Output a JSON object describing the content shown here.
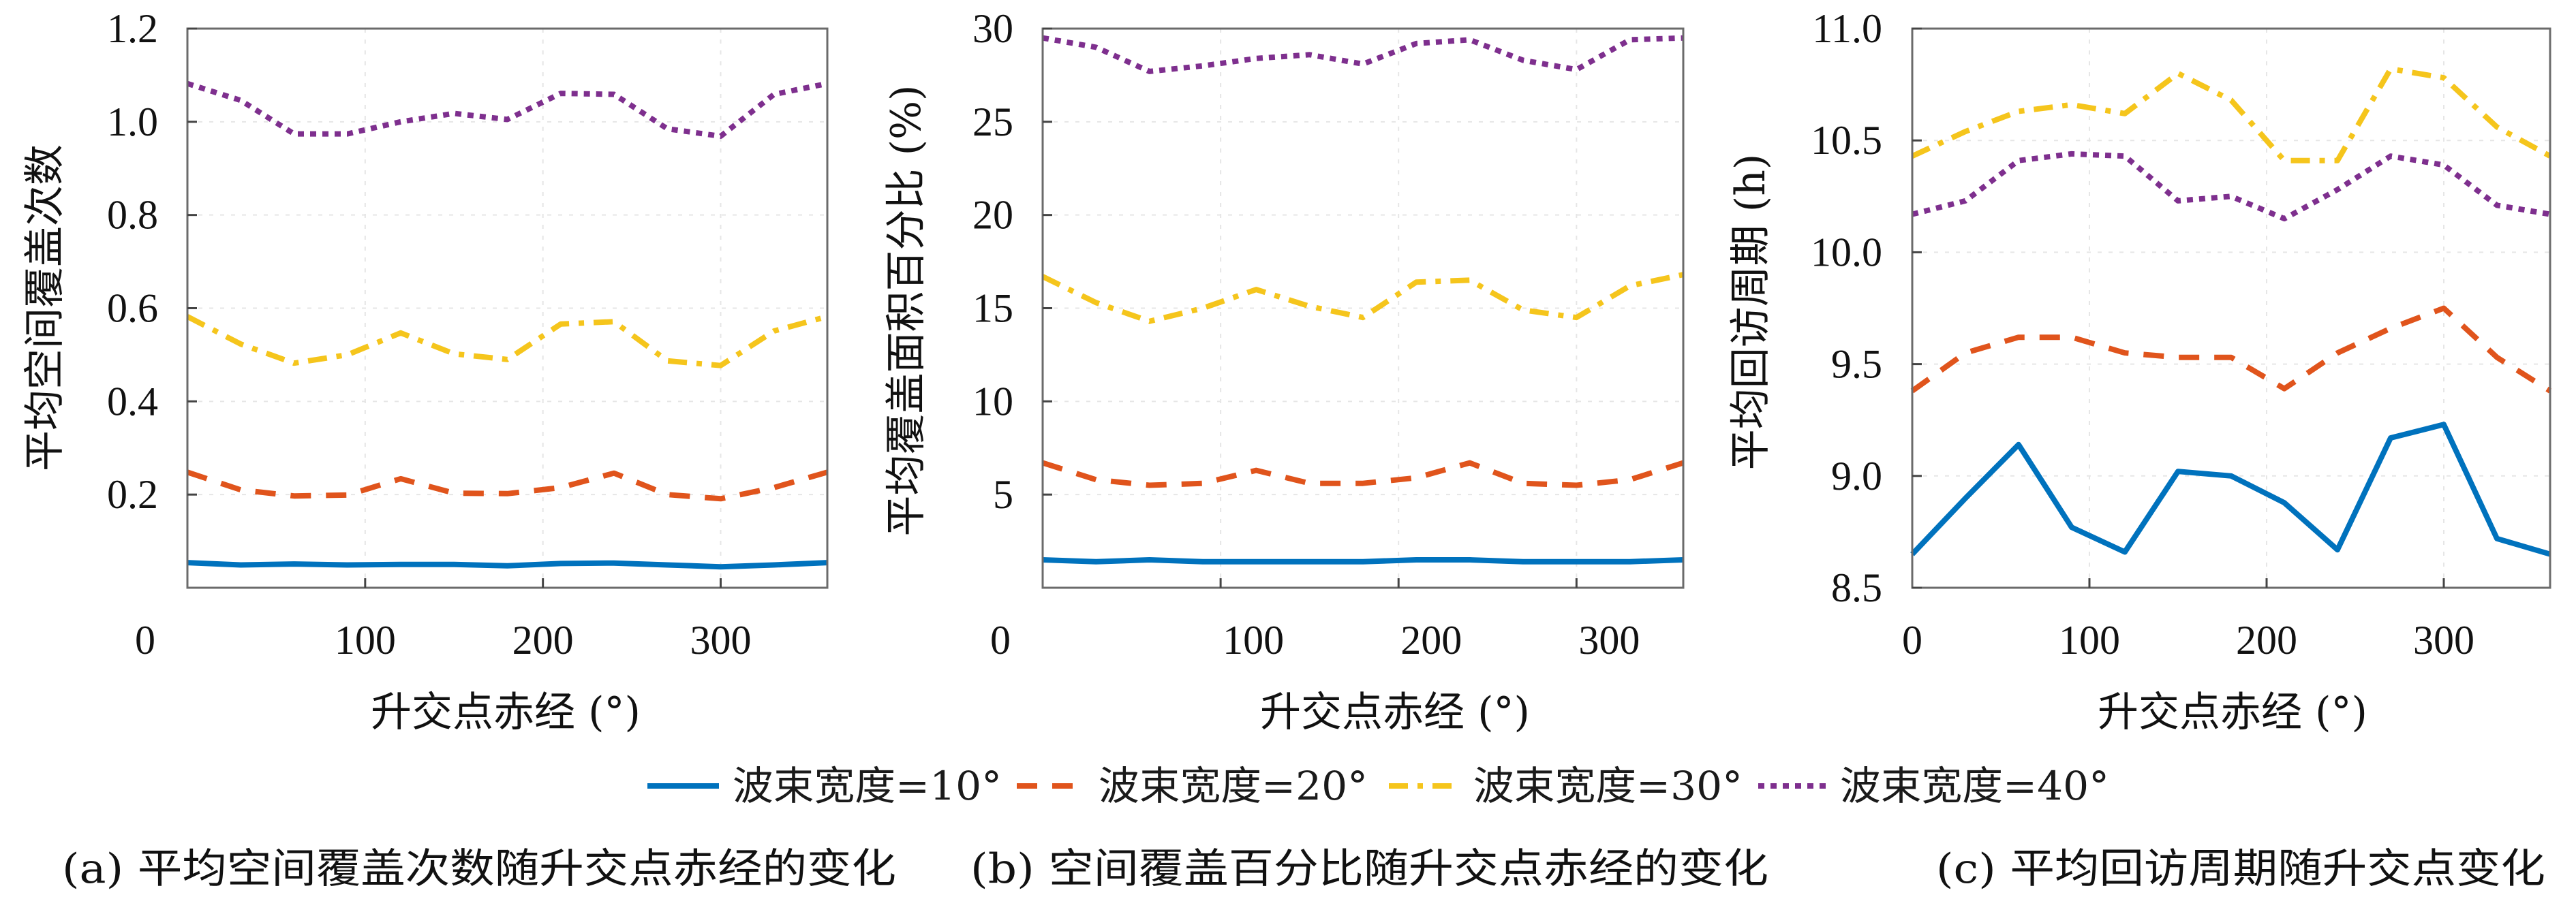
{
  "legend": [
    {
      "label": "波束宽度=10°",
      "color": "#0072BD",
      "style": "solid"
    },
    {
      "label": "波束宽度=20°",
      "color": "#E0541C",
      "style": "dashed"
    },
    {
      "label": "波束宽度=30°",
      "color": "#F5C51C",
      "style": "dashdot"
    },
    {
      "label": "波束宽度=40°",
      "color": "#7E2F8E",
      "style": "dotted"
    }
  ],
  "chart_data": [
    {
      "id": "a",
      "type": "line",
      "caption": "(a) 平均空间覆盖次数随升交点赤经的变化",
      "xlabel": "升交点赤经 (°)",
      "ylabel": "平均空间覆盖次数",
      "xlim": [
        0,
        360
      ],
      "ylim": [
        0,
        1.2
      ],
      "xticks": [
        0,
        100,
        200,
        300
      ],
      "xtick_labels": [
        "0",
        "100",
        "200",
        "300"
      ],
      "yticks": [
        0.2,
        0.4,
        0.6,
        0.8,
        1.0,
        1.2
      ],
      "ytick_labels": [
        "0.2",
        "0.4",
        "0.6",
        "0.8",
        "1.0",
        "1.2"
      ],
      "grid": true,
      "x": [
        0,
        30,
        60,
        90,
        120,
        150,
        180,
        210,
        240,
        270,
        300,
        330,
        360
      ],
      "series": [
        {
          "name": "波束宽度=10°",
          "values": [
            0.054,
            0.049,
            0.051,
            0.049,
            0.05,
            0.05,
            0.047,
            0.052,
            0.053,
            0.049,
            0.045,
            0.049,
            0.054
          ]
        },
        {
          "name": "波束宽度=20°",
          "values": [
            0.248,
            0.21,
            0.197,
            0.199,
            0.234,
            0.203,
            0.202,
            0.215,
            0.246,
            0.2,
            0.191,
            0.215,
            0.248
          ]
        },
        {
          "name": "波束宽度=30°",
          "values": [
            0.582,
            0.523,
            0.482,
            0.5,
            0.547,
            0.502,
            0.49,
            0.566,
            0.571,
            0.487,
            0.477,
            0.551,
            0.582
          ]
        },
        {
          "name": "波束宽度=40°",
          "values": [
            1.082,
            1.046,
            0.974,
            0.974,
            1.0,
            1.018,
            1.005,
            1.061,
            1.059,
            0.985,
            0.969,
            1.059,
            1.082
          ]
        }
      ]
    },
    {
      "id": "b",
      "type": "line",
      "caption": "(b) 空间覆盖百分比随升交点赤经的变化",
      "xlabel": "升交点赤经 (°)",
      "ylabel": "平均覆盖面积百分比 (%)",
      "xlim": [
        0,
        360
      ],
      "ylim": [
        0,
        30
      ],
      "xticks": [
        0,
        100,
        200,
        300
      ],
      "xtick_labels": [
        "0",
        "100",
        "200",
        "300"
      ],
      "yticks": [
        5,
        10,
        15,
        20,
        25,
        30
      ],
      "ytick_labels": [
        "5",
        "10",
        "15",
        "20",
        "25",
        "30"
      ],
      "grid": true,
      "x": [
        0,
        30,
        60,
        90,
        120,
        150,
        180,
        210,
        240,
        270,
        300,
        330,
        360
      ],
      "series": [
        {
          "name": "波束宽度=10°",
          "values": [
            1.5,
            1.4,
            1.5,
            1.4,
            1.4,
            1.4,
            1.4,
            1.5,
            1.5,
            1.4,
            1.4,
            1.4,
            1.5
          ]
        },
        {
          "name": "波束宽度=20°",
          "values": [
            6.7,
            5.8,
            5.5,
            5.6,
            6.3,
            5.6,
            5.6,
            5.9,
            6.7,
            5.6,
            5.5,
            5.8,
            6.7
          ]
        },
        {
          "name": "波束宽度=30°",
          "values": [
            16.7,
            15.3,
            14.3,
            15.0,
            16.0,
            15.1,
            14.5,
            16.4,
            16.5,
            14.9,
            14.5,
            16.2,
            16.8
          ]
        },
        {
          "name": "波束宽度=40°",
          "values": [
            29.5,
            29.0,
            27.7,
            28.0,
            28.4,
            28.6,
            28.1,
            29.2,
            29.4,
            28.3,
            27.8,
            29.4,
            29.5
          ]
        }
      ]
    },
    {
      "id": "c",
      "type": "line",
      "caption": "(c) 平均回访周期随升交点变化",
      "xlabel": "升交点赤经 (°)",
      "ylabel": "平均回访周期 (h)",
      "xlim": [
        0,
        360
      ],
      "ylim": [
        8.5,
        11.0
      ],
      "xticks": [
        0,
        100,
        200,
        300
      ],
      "xtick_labels": [
        "0",
        "100",
        "200",
        "300"
      ],
      "yticks": [
        8.5,
        9.0,
        9.5,
        10.0,
        10.5,
        11.0
      ],
      "ytick_labels": [
        "8.5",
        "9.0",
        "9.5",
        "10.0",
        "10.5",
        "11.0"
      ],
      "grid": true,
      "x": [
        0,
        30,
        60,
        90,
        120,
        150,
        180,
        210,
        240,
        270,
        300,
        330,
        360
      ],
      "series": [
        {
          "name": "波束宽度=10°",
          "values": [
            8.65,
            8.9,
            9.14,
            8.77,
            8.66,
            9.02,
            9.0,
            8.88,
            8.67,
            9.17,
            9.23,
            8.72,
            8.65
          ]
        },
        {
          "name": "波束宽度=20°",
          "values": [
            9.38,
            9.55,
            9.62,
            9.62,
            9.55,
            9.53,
            9.53,
            9.39,
            9.55,
            9.66,
            9.75,
            9.53,
            9.38
          ]
        },
        {
          "name": "波束宽度=30°",
          "values": [
            10.43,
            10.54,
            10.63,
            10.66,
            10.62,
            10.8,
            10.68,
            10.41,
            10.41,
            10.82,
            10.78,
            10.56,
            10.43
          ]
        },
        {
          "name": "波束宽度=40°",
          "values": [
            10.17,
            10.23,
            10.41,
            10.44,
            10.43,
            10.23,
            10.25,
            10.15,
            10.28,
            10.43,
            10.39,
            10.21,
            10.17
          ]
        }
      ]
    }
  ]
}
